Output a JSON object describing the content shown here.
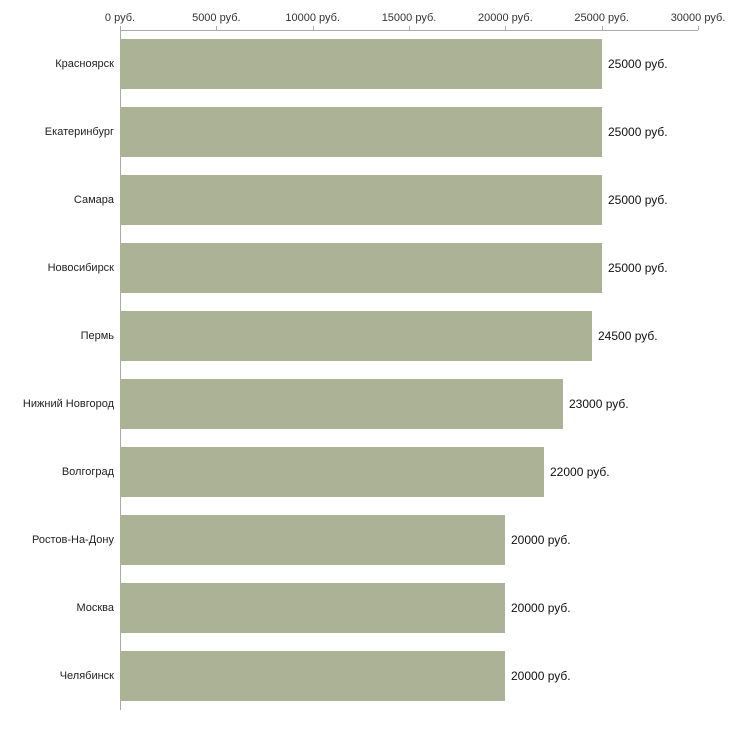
{
  "chart_data": {
    "type": "bar",
    "orientation": "horizontal",
    "title": "",
    "xlabel": "",
    "ylabel": "",
    "unit": "руб.",
    "xlim": [
      0,
      30000
    ],
    "grid": false,
    "legend": "none",
    "categories": [
      "Красноярск",
      "Екатеринбург",
      "Самара",
      "Новосибирск",
      "Пермь",
      "Нижний Новгород",
      "Волгоград",
      "Ростов-На-Дону",
      "Москва",
      "Челябинск"
    ],
    "values": [
      25000,
      25000,
      25000,
      25000,
      24500,
      23000,
      22000,
      20000,
      20000,
      20000
    ],
    "value_labels": [
      "25000 руб.",
      "25000 руб.",
      "25000 руб.",
      "25000 руб.",
      "24500 руб.",
      "23000 руб.",
      "22000 руб.",
      "20000 руб.",
      "20000 руб.",
      "20000 руб."
    ],
    "x_ticks": [
      {
        "value": 0,
        "label": "0 руб."
      },
      {
        "value": 5000,
        "label": "5000 руб."
      },
      {
        "value": 10000,
        "label": "10000 руб."
      },
      {
        "value": 15000,
        "label": "15000 руб."
      },
      {
        "value": 20000,
        "label": "20000 руб."
      },
      {
        "value": 25000,
        "label": "25000 руб."
      },
      {
        "value": 30000,
        "label": "30000 руб."
      }
    ],
    "colors": {
      "bar": "#abb296",
      "axis": "#aaaaaa",
      "tick_text": "#333333",
      "label_text": "#222222",
      "value_text": "#111111",
      "background": "#ffffff"
    }
  }
}
